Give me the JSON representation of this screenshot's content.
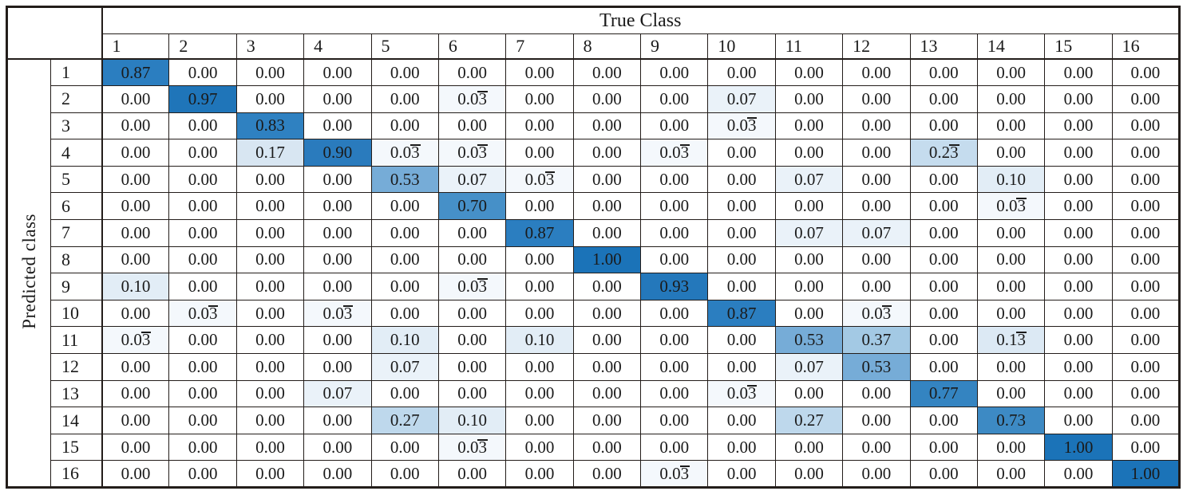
{
  "figure": {
    "true_class_label": "True Class",
    "predicted_class_label": "Predicted class"
  },
  "colors": {
    "border": "#231d1a",
    "text": "#1a1a1a",
    "value_colors": {
      "0.00": "#ffffff",
      "0.03": "#f4f8fc",
      "0.07": "#eaf2f9",
      "0.10": "#e2edf6",
      "0.13": "#dce9f4",
      "0.17": "#d8e6f2",
      "0.23": "#c5dcee",
      "0.27": "#bed8ec",
      "0.37": "#a3c9e4",
      "0.53": "#76acd7",
      "0.70": "#4690c8",
      "0.73": "#3d8ac4",
      "0.77": "#3484c1",
      "0.83": "#2f81c1",
      "0.87": "#2b7ec0",
      "0.90": "#2a7bbd",
      "0.93": "#2478bb",
      "0.97": "#1f75b9",
      "1.00": "#1b73b8"
    }
  },
  "chart_data": {
    "type": "heatmap",
    "title": "",
    "x_axis_label": "True Class",
    "y_axis_label": "Predicted class",
    "x_categories": [
      "1",
      "2",
      "3",
      "4",
      "5",
      "6",
      "7",
      "8",
      "9",
      "10",
      "11",
      "12",
      "13",
      "14",
      "15",
      "16"
    ],
    "y_categories": [
      "1",
      "2",
      "3",
      "4",
      "5",
      "6",
      "7",
      "8",
      "9",
      "10",
      "11",
      "12",
      "13",
      "14",
      "15",
      "16"
    ],
    "value_range": [
      0,
      1
    ],
    "legend": "none",
    "cells": [
      [
        "0.87",
        "0.00",
        "0.00",
        "0.00",
        "0.00",
        "0.00",
        "0.00",
        "0.00",
        "0.00",
        "0.00",
        "0.00",
        "0.00",
        "0.00",
        "0.00",
        "0.00",
        "0.00"
      ],
      [
        "0.00",
        "0.97",
        "0.00",
        "0.00",
        "0.00",
        "0.03̄",
        "0.00",
        "0.00",
        "0.00",
        "0.07",
        "0.00",
        "0.00",
        "0.00",
        "0.00",
        "0.00",
        "0.00"
      ],
      [
        "0.00",
        "0.00",
        "0.83",
        "0.00",
        "0.00",
        "0.00",
        "0.00",
        "0.00",
        "0.00",
        "0.03̄",
        "0.00",
        "0.00",
        "0.00",
        "0.00",
        "0.00",
        "0.00"
      ],
      [
        "0.00",
        "0.00",
        "0.17",
        "0.90",
        "0.03̄",
        "0.03̄",
        "0.00",
        "0.00",
        "0.03̄",
        "0.00",
        "0.00",
        "0.00",
        "0.23̄",
        "0.00",
        "0.00",
        "0.00"
      ],
      [
        "0.00",
        "0.00",
        "0.00",
        "0.00",
        "0.53",
        "0.07",
        "0.03̄",
        "0.00",
        "0.00",
        "0.00",
        "0.07",
        "0.00",
        "0.00",
        "0.10",
        "0.00",
        "0.00"
      ],
      [
        "0.00",
        "0.00",
        "0.00",
        "0.00",
        "0.00",
        "0.70",
        "0.00",
        "0.00",
        "0.00",
        "0.00",
        "0.00",
        "0.00",
        "0.00",
        "0.03̄",
        "0.00",
        "0.00"
      ],
      [
        "0.00",
        "0.00",
        "0.00",
        "0.00",
        "0.00",
        "0.00",
        "0.87",
        "0.00",
        "0.00",
        "0.00",
        "0.07",
        "0.07",
        "0.00",
        "0.00",
        "0.00",
        "0.00"
      ],
      [
        "0.00",
        "0.00",
        "0.00",
        "0.00",
        "0.00",
        "0.00",
        "0.00",
        "1.00",
        "0.00",
        "0.00",
        "0.00",
        "0.00",
        "0.00",
        "0.00",
        "0.00",
        "0.00"
      ],
      [
        "0.10",
        "0.00",
        "0.00",
        "0.00",
        "0.00",
        "0.03̄",
        "0.00",
        "0.00",
        "0.93",
        "0.00",
        "0.00",
        "0.00",
        "0.00",
        "0.00",
        "0.00",
        "0.00"
      ],
      [
        "0.00",
        "0.03̄",
        "0.00",
        "0.03̄",
        "0.00",
        "0.00",
        "0.00",
        "0.00",
        "0.00",
        "0.87",
        "0.00",
        "0.03̄",
        "0.00",
        "0.00",
        "0.00",
        "0.00"
      ],
      [
        "0.03̄",
        "0.00",
        "0.00",
        "0.00",
        "0.10",
        "0.00",
        "0.10",
        "0.00",
        "0.00",
        "0.00",
        "0.53",
        "0.37",
        "0.00",
        "0.13̄",
        "0.00",
        "0.00"
      ],
      [
        "0.00",
        "0.00",
        "0.00",
        "0.00",
        "0.07",
        "0.00",
        "0.00",
        "0.00",
        "0.00",
        "0.00",
        "0.07",
        "0.53",
        "0.00",
        "0.00",
        "0.00",
        "0.00"
      ],
      [
        "0.00",
        "0.00",
        "0.00",
        "0.07",
        "0.00",
        "0.00",
        "0.00",
        "0.00",
        "0.00",
        "0.03̄",
        "0.00",
        "0.00",
        "0.77",
        "0.00",
        "0.00",
        "0.00"
      ],
      [
        "0.00",
        "0.00",
        "0.00",
        "0.00",
        "0.27",
        "0.10",
        "0.00",
        "0.00",
        "0.00",
        "0.00",
        "0.27",
        "0.00",
        "0.00",
        "0.73",
        "0.00",
        "0.00"
      ],
      [
        "0.00",
        "0.00",
        "0.00",
        "0.00",
        "0.00",
        "0.03̄",
        "0.00",
        "0.00",
        "0.00",
        "0.00",
        "0.00",
        "0.00",
        "0.00",
        "0.00",
        "1.00",
        "0.00"
      ],
      [
        "0.00",
        "0.00",
        "0.00",
        "0.00",
        "0.00",
        "0.00",
        "0.00",
        "0.00",
        "0.03̄",
        "0.00",
        "0.00",
        "0.00",
        "0.00",
        "0.00",
        "0.00",
        "1.00"
      ]
    ]
  }
}
